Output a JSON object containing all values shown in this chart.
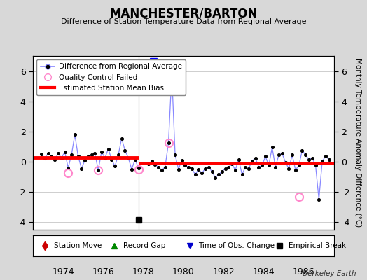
{
  "title": "MANCHESTER/BARTON",
  "subtitle": "Difference of Station Temperature Data from Regional Average",
  "ylabel": "Monthly Temperature Anomaly Difference (°C)",
  "credit": "Berkeley Earth",
  "xlim": [
    1972.5,
    1987.5
  ],
  "ylim": [
    -4.5,
    7.0
  ],
  "yticks": [
    -4,
    -2,
    0,
    2,
    4,
    6
  ],
  "xticks": [
    1974,
    1976,
    1978,
    1980,
    1982,
    1984,
    1986
  ],
  "bg_color": "#d8d8d8",
  "plot_bg": "#ffffff",
  "line_color": "#8888ff",
  "dot_color": "#000000",
  "bias_color": "#ff0000",
  "gap_x": 1977.75,
  "resume_x": 1978.25,
  "bias_before_y": 0.28,
  "bias_after_y": -0.08,
  "empirical_break_x": 1977.75,
  "empirical_break_y": -3.85,
  "time_obs_x": 1978.5,
  "time_obs_y": 6.65,
  "qc_failed": [
    [
      1974.25,
      -0.75
    ],
    [
      1975.75,
      -0.55
    ],
    [
      1977.75,
      -0.5
    ],
    [
      1979.25,
      1.25
    ],
    [
      1985.75,
      -2.3
    ]
  ],
  "data": [
    [
      1972.917,
      0.5
    ],
    [
      1973.083,
      0.25
    ],
    [
      1973.25,
      0.55
    ],
    [
      1973.417,
      0.35
    ],
    [
      1973.583,
      0.15
    ],
    [
      1973.75,
      0.55
    ],
    [
      1973.917,
      0.25
    ],
    [
      1974.083,
      0.65
    ],
    [
      1974.25,
      -0.4
    ],
    [
      1974.417,
      0.45
    ],
    [
      1974.583,
      1.8
    ],
    [
      1974.75,
      0.35
    ],
    [
      1974.917,
      -0.45
    ],
    [
      1975.083,
      0.1
    ],
    [
      1975.25,
      0.35
    ],
    [
      1975.417,
      0.45
    ],
    [
      1975.583,
      0.55
    ],
    [
      1975.75,
      -0.55
    ],
    [
      1975.917,
      0.65
    ],
    [
      1976.083,
      0.25
    ],
    [
      1976.25,
      0.85
    ],
    [
      1976.417,
      0.15
    ],
    [
      1976.583,
      -0.3
    ],
    [
      1976.75,
      0.45
    ],
    [
      1976.917,
      1.55
    ],
    [
      1977.083,
      0.75
    ],
    [
      1977.25,
      0.25
    ],
    [
      1977.417,
      -0.5
    ],
    [
      1977.583,
      0.15
    ],
    [
      1977.75,
      -0.4
    ],
    [
      1978.25,
      -0.15
    ],
    [
      1978.417,
      0.05
    ],
    [
      1978.583,
      -0.2
    ],
    [
      1978.75,
      -0.35
    ],
    [
      1978.917,
      -0.55
    ],
    [
      1979.083,
      -0.35
    ],
    [
      1979.25,
      1.25
    ],
    [
      1979.417,
      5.8
    ],
    [
      1979.583,
      0.45
    ],
    [
      1979.75,
      -0.5
    ],
    [
      1979.917,
      0.1
    ],
    [
      1980.083,
      -0.25
    ],
    [
      1980.25,
      -0.35
    ],
    [
      1980.417,
      -0.45
    ],
    [
      1980.583,
      -0.85
    ],
    [
      1980.75,
      -0.5
    ],
    [
      1980.917,
      -0.75
    ],
    [
      1981.083,
      -0.45
    ],
    [
      1981.25,
      -0.35
    ],
    [
      1981.417,
      -0.65
    ],
    [
      1981.583,
      -1.05
    ],
    [
      1981.75,
      -0.85
    ],
    [
      1981.917,
      -0.65
    ],
    [
      1982.083,
      -0.45
    ],
    [
      1982.25,
      -0.35
    ],
    [
      1982.417,
      -0.15
    ],
    [
      1982.583,
      -0.55
    ],
    [
      1982.75,
      0.15
    ],
    [
      1982.917,
      -0.85
    ],
    [
      1983.083,
      -0.35
    ],
    [
      1983.25,
      -0.45
    ],
    [
      1983.417,
      0.05
    ],
    [
      1983.583,
      0.25
    ],
    [
      1983.75,
      -0.35
    ],
    [
      1983.917,
      -0.25
    ],
    [
      1984.083,
      0.35
    ],
    [
      1984.25,
      -0.25
    ],
    [
      1984.417,
      0.95
    ],
    [
      1984.583,
      -0.35
    ],
    [
      1984.75,
      0.45
    ],
    [
      1984.917,
      0.55
    ],
    [
      1985.083,
      -0.05
    ],
    [
      1985.25,
      -0.45
    ],
    [
      1985.417,
      0.45
    ],
    [
      1985.583,
      -0.55
    ],
    [
      1985.75,
      -0.25
    ],
    [
      1985.917,
      0.75
    ],
    [
      1986.083,
      0.45
    ],
    [
      1986.25,
      0.15
    ],
    [
      1986.417,
      0.25
    ],
    [
      1986.583,
      -0.25
    ],
    [
      1986.75,
      -2.5
    ],
    [
      1986.917,
      0.05
    ],
    [
      1987.083,
      0.35
    ],
    [
      1987.25,
      0.15
    ]
  ]
}
